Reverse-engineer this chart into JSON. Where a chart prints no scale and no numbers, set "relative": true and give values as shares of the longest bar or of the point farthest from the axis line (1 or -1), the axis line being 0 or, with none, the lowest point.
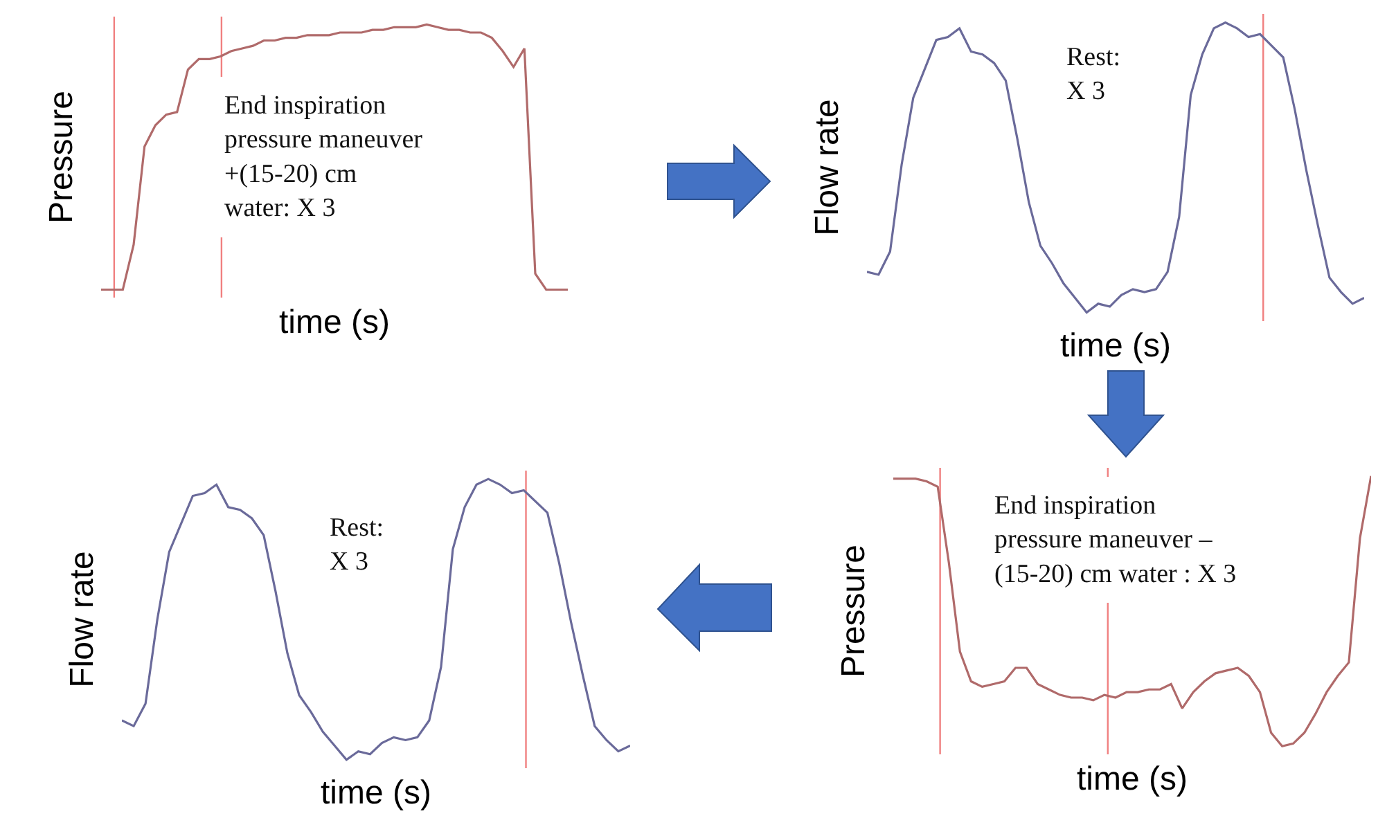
{
  "chart_data": [
    {
      "type": "line",
      "relative": true,
      "xlabel": "time (s)",
      "ylabel": "Pressure",
      "categories": [
        null,
        null,
        null,
        null,
        null,
        null,
        null,
        null,
        null,
        null,
        null,
        null,
        null,
        null,
        null,
        null,
        null,
        null,
        null,
        null,
        null,
        null,
        null,
        null,
        null,
        null,
        null,
        null,
        null,
        null,
        null,
        null,
        null,
        null,
        null,
        null,
        null,
        null,
        null,
        null,
        null,
        null,
        null,
        null
      ],
      "series": [
        {
          "color": "#b06a6a",
          "values": [
            0,
            0,
            0,
            0.17,
            0.54,
            0.62,
            0.66,
            0.67,
            0.83,
            0.87,
            0.87,
            0.88,
            0.9,
            0.91,
            0.92,
            0.94,
            0.94,
            0.95,
            0.95,
            0.96,
            0.96,
            0.96,
            0.97,
            0.97,
            0.97,
            0.98,
            0.98,
            0.99,
            0.99,
            0.99,
            1,
            0.99,
            0.98,
            0.98,
            0.97,
            0.97,
            0.95,
            0.9,
            0.84,
            0.91,
            0.06,
            0,
            0,
            0
          ]
        }
      ],
      "annotations": [
        "End inspiration\npressure maneuver\n+(15-20) cm\nwater: X 3"
      ]
    },
    {
      "type": "line",
      "relative": true,
      "xlabel": "time (s)",
      "ylabel": "Flow rate",
      "categories": [
        null,
        null,
        null,
        null,
        null,
        null,
        null,
        null,
        null,
        null,
        null,
        null,
        null,
        null,
        null,
        null,
        null,
        null,
        null,
        null,
        null,
        null,
        null,
        null,
        null,
        null,
        null,
        null,
        null,
        null,
        null,
        null,
        null,
        null,
        null,
        null,
        null,
        null,
        null,
        null,
        null,
        null,
        null,
        null
      ],
      "series": [
        {
          "color": "#6a6a9a",
          "values": [
            0.14,
            0.13,
            0.21,
            0.51,
            0.74,
            0.84,
            0.94,
            0.95,
            0.98,
            0.9,
            0.89,
            0.86,
            0.8,
            0.6,
            0.38,
            0.23,
            0.17,
            0.1,
            0.05,
            0,
            0.03,
            0.02,
            0.06,
            0.08,
            0.07,
            0.08,
            0.14,
            0.33,
            0.75,
            0.89,
            0.98,
            1,
            0.98,
            0.95,
            0.96,
            0.92,
            0.88,
            0.7,
            0.49,
            0.3,
            0.12,
            0.07,
            0.03,
            0.05
          ]
        }
      ],
      "annotations": [
        "Rest:\nX 3"
      ]
    },
    {
      "type": "line",
      "relative": true,
      "xlabel": "time (s)",
      "ylabel": "Flow rate",
      "categories": [
        null,
        null,
        null,
        null,
        null,
        null,
        null,
        null,
        null,
        null,
        null,
        null,
        null,
        null,
        null,
        null,
        null,
        null,
        null,
        null,
        null,
        null,
        null,
        null,
        null,
        null,
        null,
        null,
        null,
        null,
        null,
        null,
        null,
        null,
        null,
        null,
        null,
        null,
        null,
        null,
        null,
        null,
        null,
        null
      ],
      "series": [
        {
          "color": "#6a6a9a",
          "values": [
            0.14,
            0.12,
            0.2,
            0.5,
            0.74,
            0.84,
            0.94,
            0.95,
            0.98,
            0.9,
            0.89,
            0.86,
            0.8,
            0.6,
            0.38,
            0.23,
            0.17,
            0.1,
            0.05,
            0,
            0.03,
            0.02,
            0.06,
            0.08,
            0.07,
            0.08,
            0.14,
            0.33,
            0.75,
            0.9,
            0.98,
            1,
            0.98,
            0.95,
            0.96,
            0.92,
            0.88,
            0.7,
            0.49,
            0.3,
            0.12,
            0.07,
            0.03,
            0.05
          ]
        }
      ],
      "annotations": [
        "Rest:\nX 3"
      ]
    },
    {
      "type": "line",
      "relative": true,
      "xlabel": "time (s)",
      "ylabel": "Pressure",
      "categories": [
        null,
        null,
        null,
        null,
        null,
        null,
        null,
        null,
        null,
        null,
        null,
        null,
        null,
        null,
        null,
        null,
        null,
        null,
        null,
        null,
        null,
        null,
        null,
        null,
        null,
        null,
        null,
        null,
        null,
        null,
        null,
        null,
        null,
        null,
        null,
        null,
        null,
        null,
        null,
        null,
        null,
        null,
        null,
        null
      ],
      "series": [
        {
          "color": "#b06a6a",
          "values": [
            0.99,
            0.99,
            0.99,
            0.98,
            0.96,
            0.68,
            0.35,
            0.24,
            0.22,
            0.23,
            0.24,
            0.29,
            0.29,
            0.23,
            0.21,
            0.19,
            0.18,
            0.18,
            0.17,
            0.19,
            0.18,
            0.2,
            0.2,
            0.21,
            0.21,
            0.23,
            0.14,
            0.2,
            0.24,
            0.27,
            0.28,
            0.29,
            0.26,
            0.2,
            0.05,
            0,
            0.01,
            0.05,
            0.12,
            0.2,
            0.26,
            0.31,
            0.77,
            1
          ]
        }
      ],
      "annotations": [
        "End inspiration\npressure maneuver –\n(15-20) cm water : X 3"
      ]
    }
  ]
}
